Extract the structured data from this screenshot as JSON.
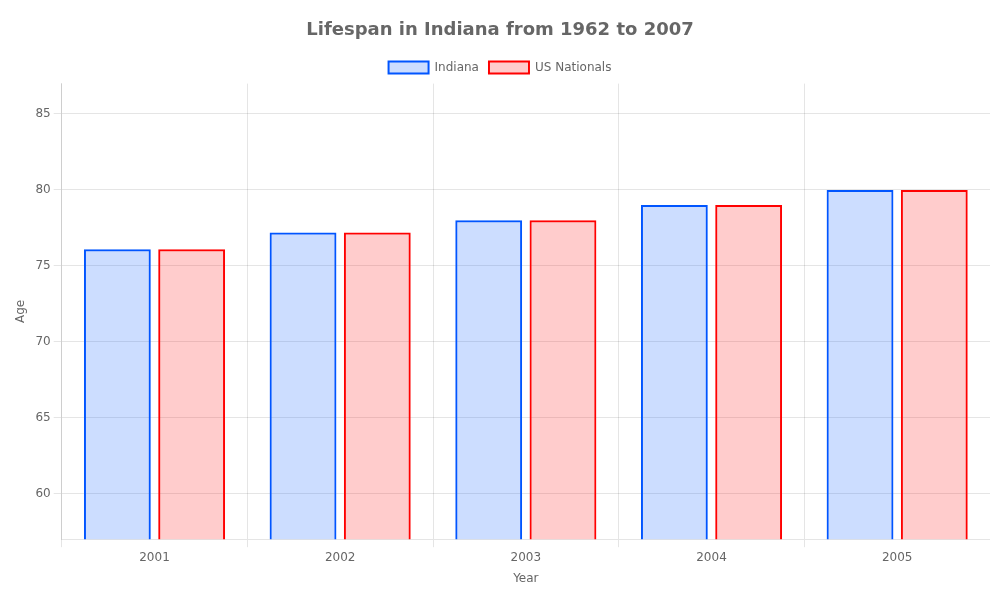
{
  "chart_data": {
    "type": "bar",
    "title": "Lifespan in Indiana from 1962 to 2007",
    "x_label": "Year",
    "y_label": "Age",
    "categories": [
      "2001",
      "2002",
      "2003",
      "2004",
      "2005"
    ],
    "series": [
      {
        "name": "Indiana",
        "color": "#0055ff",
        "values": [
          76.1,
          77.2,
          78.0,
          79.0,
          80.0
        ]
      },
      {
        "name": "US Nationals",
        "color": "#ff0000",
        "values": [
          76.1,
          77.2,
          78.0,
          79.0,
          80.0
        ]
      }
    ],
    "ylim": [
      57,
      87
    ],
    "yticks": [
      60,
      65,
      70,
      75,
      80,
      85
    ],
    "grid": true,
    "legend": "top"
  }
}
